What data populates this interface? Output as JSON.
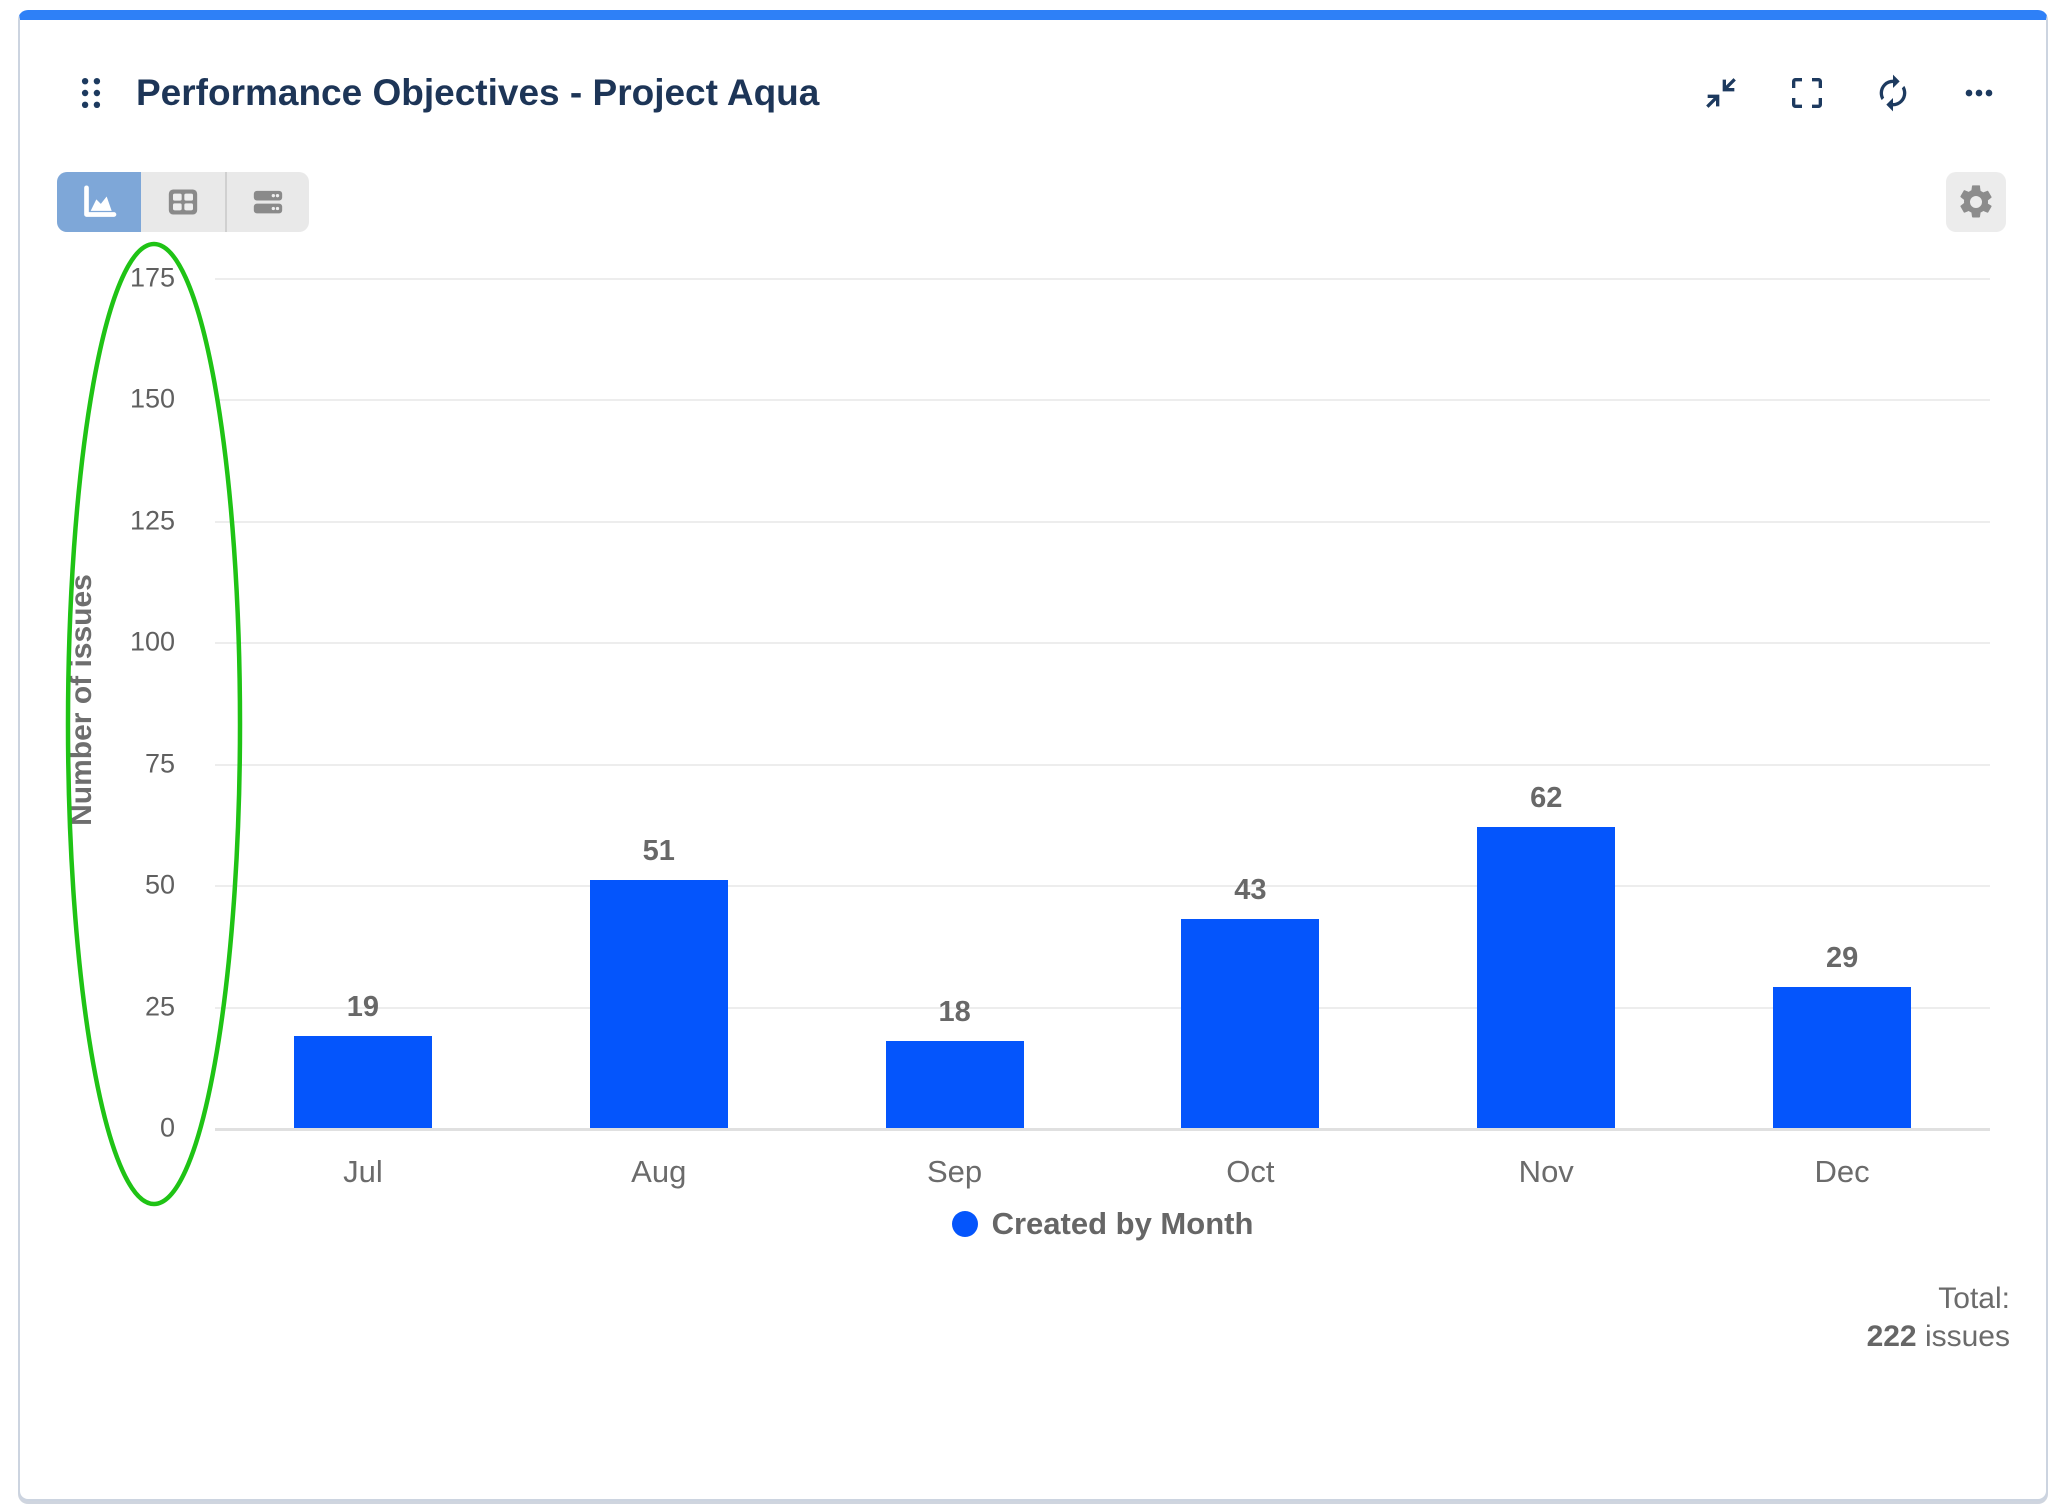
{
  "header": {
    "title": "Performance Objectives - Project Aqua",
    "actions": [
      {
        "label": "collapse",
        "icon": "collapse-icon"
      },
      {
        "label": "fullscreen",
        "icon": "fullscreen-icon"
      },
      {
        "label": "refresh",
        "icon": "refresh-icon"
      },
      {
        "label": "more options",
        "icon": "ellipsis-icon"
      }
    ]
  },
  "toolbar": {
    "views": [
      {
        "id": "chart",
        "icon": "area-chart-icon",
        "active": true
      },
      {
        "id": "table",
        "icon": "table-icon",
        "active": false
      },
      {
        "id": "list",
        "icon": "list-icon",
        "active": false
      }
    ],
    "settings_icon": "gear-icon"
  },
  "chart_data": {
    "type": "bar",
    "categories": [
      "Jul",
      "Aug",
      "Sep",
      "Oct",
      "Nov",
      "Dec"
    ],
    "series": [
      {
        "name": "Created by Month",
        "values": [
          19,
          51,
          18,
          43,
          62,
          29
        ],
        "color": "#0455fc"
      }
    ],
    "ylabel": "Number of issues",
    "ylim": [
      0,
      175
    ],
    "ytick_step": 25,
    "grid": true,
    "legend_position": "bottom",
    "bar_value_labels": true
  },
  "legend": {
    "label": "Created by Month",
    "dot_color": "#0455fc"
  },
  "summary": {
    "line1": "Total:",
    "value": "222",
    "unit": " issues"
  },
  "annotation": {
    "type": "ellipse",
    "color": "#1fc315"
  },
  "colors": {
    "accent_top_bar": "#2e80f7",
    "title_text": "#1d3557",
    "active_toggle_bg": "#7ea7d8",
    "chart_text": "#6b6b6b"
  }
}
